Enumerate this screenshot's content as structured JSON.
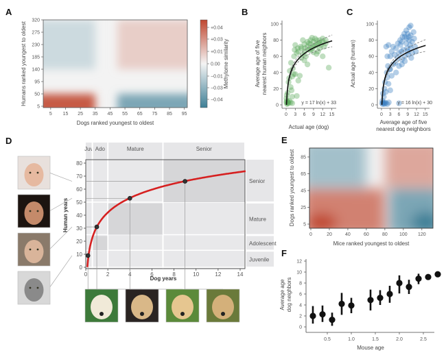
{
  "chart_data": [
    {
      "panel": "A",
      "type": "heatmap",
      "xlabel": "Dogs ranked youngest to oldest",
      "ylabel": "Humans ranked youngest to oldest",
      "xticks": [
        "5",
        "15",
        "25",
        "35",
        "45",
        "55",
        "65",
        "75",
        "85",
        "95"
      ],
      "yticks": [
        "5",
        "50",
        "95",
        "140",
        "185",
        "230",
        "275",
        "320"
      ],
      "xlim": [
        0,
        97
      ],
      "ylim": [
        0,
        320
      ],
      "colorbar": {
        "label": "Methylome similarity",
        "ticks": [
          "+0.04",
          "+0.03",
          "+0.01",
          "0.00",
          "−0.01",
          "−0.03",
          "−0.04"
        ],
        "colors": {
          "high": "#c0472f",
          "mid": "#f4f4f4",
          "low": "#3e7f96"
        }
      },
      "regions": [
        {
          "x": [
            0,
            35
          ],
          "y": [
            0,
            50
          ],
          "value": 0.04
        },
        {
          "x": [
            0,
            35
          ],
          "y": [
            140,
            320
          ],
          "value": -0.01
        },
        {
          "x": [
            50,
            97
          ],
          "y": [
            0,
            50
          ],
          "value": -0.03
        },
        {
          "x": [
            50,
            97
          ],
          "y": [
            140,
            320
          ],
          "value": 0.01
        }
      ]
    },
    {
      "panel": "B",
      "type": "scatter",
      "xlabel": "Actual age (dog)",
      "ylabel_lines": [
        "Average age of five",
        "nearest human neighbors"
      ],
      "xticks": [
        "0",
        "3",
        "6",
        "9",
        "12",
        "15"
      ],
      "yticks": [
        "0",
        "20",
        "40",
        "60",
        "80",
        "100"
      ],
      "xlim": [
        0,
        16
      ],
      "ylim": [
        0,
        100
      ],
      "point_color": "#5aa95a",
      "fit": {
        "equation": "y = 17 ln(x) + 33",
        "a": 17,
        "b": 33
      },
      "points": [
        [
          0.1,
          3
        ],
        [
          0.2,
          5
        ],
        [
          0.3,
          1
        ],
        [
          0.1,
          8
        ],
        [
          0.4,
          2
        ],
        [
          0.5,
          4
        ],
        [
          0.2,
          12
        ],
        [
          0.6,
          3
        ],
        [
          0.8,
          2
        ],
        [
          1,
          5
        ],
        [
          1.5,
          3
        ],
        [
          2,
          2
        ],
        [
          0.5,
          15
        ],
        [
          0.8,
          28
        ],
        [
          1,
          33
        ],
        [
          1.2,
          42
        ],
        [
          1.5,
          22
        ],
        [
          1.8,
          18
        ],
        [
          2,
          35
        ],
        [
          2.2,
          45
        ],
        [
          2.5,
          38
        ],
        [
          1.6,
          52
        ],
        [
          3,
          38
        ],
        [
          2,
          10
        ],
        [
          3.5,
          11
        ],
        [
          4,
          30
        ],
        [
          4.5,
          36
        ],
        [
          5,
          70
        ],
        [
          5.5,
          62
        ],
        [
          6,
          66
        ],
        [
          6.5,
          60
        ],
        [
          7,
          72
        ],
        [
          7.5,
          68
        ],
        [
          8,
          75
        ],
        [
          8.5,
          70
        ],
        [
          9,
          78
        ],
        [
          9.5,
          73
        ],
        [
          10,
          80
        ],
        [
          10.5,
          76
        ],
        [
          11,
          80
        ],
        [
          11.5,
          74
        ],
        [
          12,
          78
        ],
        [
          12.5,
          72
        ],
        [
          13,
          76
        ],
        [
          3,
          74
        ],
        [
          4,
          66
        ],
        [
          5,
          58
        ],
        [
          6,
          55
        ],
        [
          7,
          50
        ],
        [
          8,
          80
        ],
        [
          9,
          65
        ],
        [
          10,
          63
        ],
        [
          11,
          70
        ],
        [
          12,
          82
        ],
        [
          6,
          75
        ],
        [
          7,
          78
        ],
        [
          8,
          68
        ],
        [
          9,
          72
        ],
        [
          10,
          74
        ],
        [
          11,
          77
        ],
        [
          14,
          46
        ],
        [
          5.5,
          80
        ],
        [
          7.5,
          76
        ],
        [
          3.5,
          64
        ],
        [
          2.6,
          60
        ],
        [
          8.5,
          83
        ],
        [
          9.5,
          82
        ],
        [
          10.5,
          66
        ],
        [
          12,
          60
        ],
        [
          13,
          80
        ],
        [
          4.8,
          72
        ],
        [
          6.2,
          70
        ],
        [
          3.8,
          70
        ],
        [
          2.8,
          68
        ]
      ]
    },
    {
      "panel": "C",
      "type": "scatter",
      "xlabel_lines": [
        "Average age of five",
        "nearest dog neighbors"
      ],
      "ylabel": "Actual age (human)",
      "xticks": [
        "0",
        "3",
        "6",
        "9",
        "12",
        "15"
      ],
      "yticks": [
        "0",
        "20",
        "40",
        "60",
        "80",
        "100"
      ],
      "xlim": [
        0,
        16
      ],
      "ylim": [
        0,
        100
      ],
      "point_color": "#3a7ec0",
      "fit": {
        "equation": "y = 16 ln(x) + 30",
        "a": 16,
        "b": 30
      },
      "points": [
        [
          0.2,
          2
        ],
        [
          0.4,
          1
        ],
        [
          0.6,
          3
        ],
        [
          0.8,
          2
        ],
        [
          1,
          1
        ],
        [
          1.2,
          3
        ],
        [
          1.5,
          2
        ],
        [
          2,
          1
        ],
        [
          2.5,
          3
        ],
        [
          0.3,
          5
        ],
        [
          0.5,
          14
        ],
        [
          0.8,
          10
        ],
        [
          1,
          20
        ],
        [
          1.2,
          28
        ],
        [
          1.5,
          16
        ],
        [
          2,
          34
        ],
        [
          2.4,
          26
        ],
        [
          3,
          18
        ],
        [
          1.8,
          40
        ],
        [
          2.2,
          48
        ],
        [
          2.8,
          44
        ],
        [
          3.5,
          36
        ],
        [
          3,
          60
        ],
        [
          3.5,
          66
        ],
        [
          4,
          72
        ],
        [
          4.5,
          62
        ],
        [
          5,
          70
        ],
        [
          5.5,
          58
        ],
        [
          6,
          64
        ],
        [
          6.5,
          74
        ],
        [
          7,
          78
        ],
        [
          7.5,
          68
        ],
        [
          8,
          84
        ],
        [
          8.5,
          76
        ],
        [
          9,
          88
        ],
        [
          9.5,
          80
        ],
        [
          10,
          86
        ],
        [
          10.5,
          78
        ],
        [
          11,
          90
        ],
        [
          11.5,
          72
        ],
        [
          8,
          60
        ],
        [
          9,
          66
        ],
        [
          10,
          70
        ],
        [
          7,
          56
        ],
        [
          8.5,
          92
        ],
        [
          9.5,
          96
        ],
        [
          10,
          98
        ],
        [
          7.2,
          84
        ],
        [
          6.4,
          80
        ],
        [
          5.6,
          76
        ],
        [
          4.8,
          52
        ],
        [
          8.8,
          70
        ],
        [
          9.8,
          74
        ],
        [
          10.6,
          64
        ],
        [
          11.2,
          82
        ],
        [
          6,
          48
        ],
        [
          7,
          50
        ],
        [
          8,
          54
        ],
        [
          4,
          50
        ],
        [
          3,
          44
        ],
        [
          2,
          60
        ],
        [
          1.6,
          72
        ],
        [
          2.4,
          74
        ],
        [
          6,
          2
        ],
        [
          5,
          40
        ],
        [
          9.2,
          62
        ],
        [
          10.2,
          58
        ],
        [
          11.8,
          66
        ],
        [
          7.8,
          88
        ],
        [
          8.6,
          82
        ],
        [
          9.4,
          84
        ],
        [
          6.8,
          66
        ]
      ]
    },
    {
      "panel": "D",
      "type": "line",
      "xlabel": "Dog years",
      "ylabel": "Human years",
      "xticks": [
        "0",
        "2",
        "4",
        "6",
        "8",
        "10",
        "12",
        "14"
      ],
      "yticks": [
        "0",
        "10",
        "20",
        "30",
        "40",
        "50",
        "60",
        "70",
        "80"
      ],
      "xlim": [
        0,
        14.5
      ],
      "ylim": [
        0,
        85
      ],
      "line_color": "#d62020",
      "fit": {
        "a": 16,
        "b": 31
      },
      "highlighted_points": [
        [
          0.2,
          9
        ],
        [
          1,
          31
        ],
        [
          4,
          53
        ],
        [
          9,
          66
        ]
      ],
      "dog_stages": [
        {
          "label": "Juv",
          "x": [
            0,
            0.6
          ]
        },
        {
          "label": "Ado",
          "x": [
            0.6,
            2
          ]
        },
        {
          "label": "Mature",
          "x": [
            2,
            7
          ]
        },
        {
          "label": "Senior",
          "x": [
            7,
            14.5
          ]
        }
      ],
      "human_stages": [
        {
          "label": "Juvenile",
          "y": [
            0,
            12
          ]
        },
        {
          "label": "Adolescent",
          "y": [
            13,
            24
          ]
        },
        {
          "label": "Mature",
          "y": [
            25,
            49
          ]
        },
        {
          "label": "Senior",
          "y": [
            50,
            85
          ]
        }
      ]
    },
    {
      "panel": "E",
      "type": "heatmap",
      "xlabel": "Mice ranked youngest to oldest",
      "ylabel": "Dogs ranked youngest to oldest",
      "xticks": [
        "0",
        "20",
        "40",
        "60",
        "80",
        "100",
        "120"
      ],
      "yticks": [
        "5",
        "25",
        "45",
        "65",
        "85"
      ],
      "xlim": [
        0,
        132
      ],
      "ylim": [
        0,
        95
      ],
      "regions": [
        {
          "x": [
            0,
            80
          ],
          "y": [
            0,
            47
          ],
          "value": 0.03
        },
        {
          "x": [
            0,
            60
          ],
          "y": [
            48,
            95
          ],
          "value": -0.02
        },
        {
          "x": [
            80,
            132
          ],
          "y": [
            48,
            95
          ],
          "value": 0.02
        },
        {
          "x": [
            85,
            132
          ],
          "y": [
            0,
            47
          ],
          "value": -0.03
        }
      ]
    },
    {
      "panel": "F",
      "type": "scatter",
      "xlabel": "Mouse age",
      "ylabel_lines": [
        "Average age",
        "dog neighbors"
      ],
      "xticks": [
        "0.5",
        "1.0",
        "1.5",
        "2.0",
        "2.5"
      ],
      "yticks": [
        "0",
        "2",
        "4",
        "6",
        "8",
        "10",
        "12"
      ],
      "xlim": [
        0,
        3.0
      ],
      "ylim": [
        -0.5,
        12
      ],
      "points": [
        {
          "x": 0.2,
          "y": 2.0,
          "lo": 0.6,
          "hi": 3.8
        },
        {
          "x": 0.4,
          "y": 2.3,
          "lo": 0.9,
          "hi": 3.9
        },
        {
          "x": 0.6,
          "y": 1.3,
          "lo": 0.2,
          "hi": 2.6
        },
        {
          "x": 0.8,
          "y": 4.2,
          "lo": 2.2,
          "hi": 6.2
        },
        {
          "x": 1.0,
          "y": 3.9,
          "lo": 2.5,
          "hi": 5.3
        },
        {
          "x": 1.4,
          "y": 4.9,
          "lo": 3.0,
          "hi": 6.8
        },
        {
          "x": 1.6,
          "y": 5.3,
          "lo": 4.0,
          "hi": 6.7
        },
        {
          "x": 1.8,
          "y": 6.0,
          "lo": 4.4,
          "hi": 7.5
        },
        {
          "x": 2.0,
          "y": 8.0,
          "lo": 6.1,
          "hi": 9.4
        },
        {
          "x": 2.2,
          "y": 7.3,
          "lo": 6.0,
          "hi": 8.6
        },
        {
          "x": 2.4,
          "y": 8.8,
          "lo": 7.8,
          "hi": 9.7
        },
        {
          "x": 2.6,
          "y": 9.1,
          "lo": 8.8,
          "hi": 9.4
        },
        {
          "x": 2.8,
          "y": 9.6,
          "lo": 9.3,
          "hi": 9.9
        }
      ]
    }
  ],
  "panels": {
    "A": {
      "label": "A"
    },
    "B": {
      "label": "B"
    },
    "C": {
      "label": "C"
    },
    "D": {
      "label": "D"
    },
    "E": {
      "label": "E"
    },
    "F": {
      "label": "F"
    }
  },
  "images": {
    "human_photos": [
      "human-photo-senior",
      "human-photo-mature",
      "human-photo-adolescent",
      "human-photo-juvenile"
    ],
    "dog_photos": [
      "dog-photo-puppy",
      "dog-photo-adolescent",
      "dog-photo-mature",
      "dog-photo-senior"
    ]
  }
}
